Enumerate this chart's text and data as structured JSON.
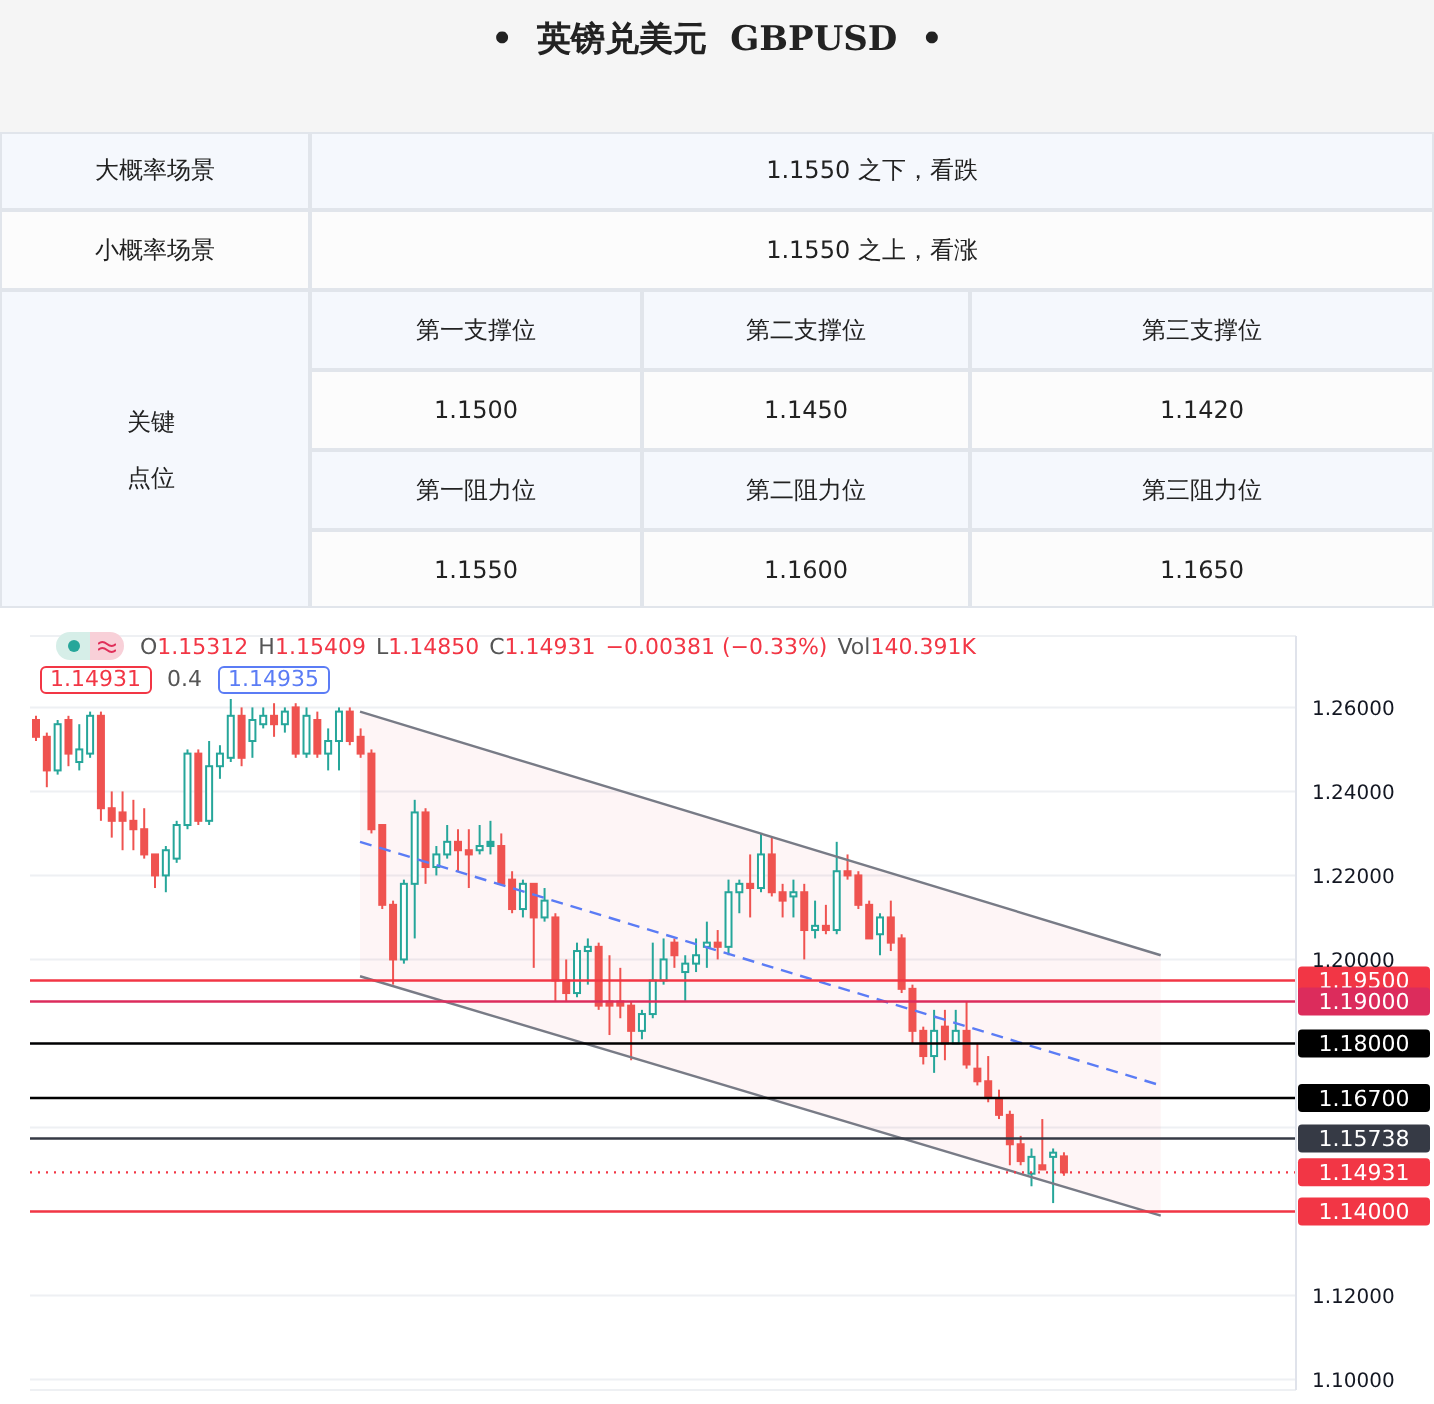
{
  "chart_data": [
    {
      "type": "other",
      "title": "•  英镑兑美元  GBPUSD  •",
      "annotations": [
        "大概率场景",
        "1.1550 之下，看跌",
        "小概率场景",
        "1.1550 之上，看涨",
        "关键点位",
        "第一支撑位",
        "第二支撑位",
        "第三支撑位",
        "1.1500",
        "1.1450",
        "1.1420",
        "第一阻力位",
        "第二阻力位",
        "第三阻力位",
        "1.1550",
        "1.1600",
        "1.1650"
      ]
    },
    {
      "type": "candlestick",
      "categories": [
        null,
        null,
        null,
        null,
        null,
        null,
        null,
        null,
        null,
        null,
        null,
        null,
        null,
        null,
        null,
        null,
        null,
        null,
        null,
        null,
        null,
        null,
        null,
        null,
        null,
        null,
        null,
        null,
        null,
        null,
        null,
        null,
        null,
        null,
        null,
        null,
        null,
        null,
        null,
        null,
        null,
        null,
        null,
        null,
        null,
        null,
        null,
        null,
        null,
        null,
        null,
        null,
        null,
        null,
        null,
        null,
        null,
        null,
        null,
        null,
        null,
        null,
        null,
        null,
        null,
        null,
        null,
        null,
        null,
        null,
        null,
        null,
        null,
        null,
        null,
        null,
        null,
        null,
        null,
        null,
        null,
        null,
        null,
        null,
        null,
        null,
        null,
        null,
        null,
        null,
        null,
        null,
        null,
        null,
        null,
        null,
        null,
        null,
        null,
        null,
        null,
        null,
        null,
        null,
        null,
        null,
        null,
        null,
        null,
        null,
        null,
        null,
        null,
        null,
        null,
        null,
        null
      ],
      "ohlc": [
        [
          1.257,
          1.258,
          1.252,
          1.253
        ],
        [
          1.253,
          1.254,
          1.241,
          1.245
        ],
        [
          1.245,
          1.257,
          1.244,
          1.256
        ],
        [
          1.257,
          1.258,
          1.246,
          1.249
        ],
        [
          1.247,
          1.256,
          1.245,
          1.25
        ],
        [
          1.249,
          1.259,
          1.248,
          1.258
        ],
        [
          1.258,
          1.259,
          1.233,
          1.236
        ],
        [
          1.236,
          1.24,
          1.229,
          1.233
        ],
        [
          1.235,
          1.24,
          1.226,
          1.233
        ],
        [
          1.233,
          1.238,
          1.226,
          1.231
        ],
        [
          1.231,
          1.236,
          1.224,
          1.225
        ],
        [
          1.225,
          1.225,
          1.217,
          1.22
        ],
        [
          1.22,
          1.227,
          1.216,
          1.226
        ],
        [
          1.224,
          1.233,
          1.223,
          1.232
        ],
        [
          1.232,
          1.25,
          1.231,
          1.249
        ],
        [
          1.249,
          1.25,
          1.232,
          1.233
        ],
        [
          1.233,
          1.252,
          1.232,
          1.246
        ],
        [
          1.246,
          1.251,
          1.243,
          1.249
        ],
        [
          1.248,
          1.262,
          1.247,
          1.258
        ],
        [
          1.258,
          1.26,
          1.246,
          1.248
        ],
        [
          1.252,
          1.26,
          1.248,
          1.257
        ],
        [
          1.256,
          1.26,
          1.255,
          1.258
        ],
        [
          1.258,
          1.261,
          1.253,
          1.256
        ],
        [
          1.256,
          1.26,
          1.254,
          1.259
        ],
        [
          1.26,
          1.261,
          1.248,
          1.249
        ],
        [
          1.249,
          1.26,
          1.248,
          1.258
        ],
        [
          1.257,
          1.259,
          1.248,
          1.249
        ],
        [
          1.249,
          1.255,
          1.245,
          1.252
        ],
        [
          1.252,
          1.26,
          1.245,
          1.259
        ],
        [
          1.259,
          1.26,
          1.251,
          1.252
        ],
        [
          1.253,
          1.255,
          1.248,
          1.249
        ],
        [
          1.249,
          1.25,
          1.23,
          1.231
        ],
        [
          1.232,
          1.232,
          1.212,
          1.213
        ],
        [
          1.213,
          1.214,
          1.194,
          1.2
        ],
        [
          1.2,
          1.219,
          1.199,
          1.218
        ],
        [
          1.218,
          1.238,
          1.205,
          1.235
        ],
        [
          1.235,
          1.236,
          1.218,
          1.222
        ],
        [
          1.222,
          1.227,
          1.22,
          1.225
        ],
        [
          1.225,
          1.232,
          1.224,
          1.228
        ],
        [
          1.228,
          1.231,
          1.221,
          1.226
        ],
        [
          1.226,
          1.231,
          1.217,
          1.225
        ],
        [
          1.226,
          1.232,
          1.225,
          1.227
        ],
        [
          1.228,
          1.233,
          1.225,
          1.227
        ],
        [
          1.227,
          1.23,
          1.218,
          1.218
        ],
        [
          1.219,
          1.221,
          1.211,
          1.212
        ],
        [
          1.212,
          1.219,
          1.21,
          1.218
        ],
        [
          1.218,
          1.218,
          1.198,
          1.21
        ],
        [
          1.21,
          1.217,
          1.209,
          1.214
        ],
        [
          1.21,
          1.211,
          1.19,
          1.195
        ],
        [
          1.195,
          1.2,
          1.19,
          1.192
        ],
        [
          1.192,
          1.204,
          1.191,
          1.202
        ],
        [
          1.202,
          1.205,
          1.194,
          1.203
        ],
        [
          1.203,
          1.204,
          1.188,
          1.189
        ],
        [
          1.19,
          1.201,
          1.182,
          1.189
        ],
        [
          1.19,
          1.198,
          1.186,
          1.189
        ],
        [
          1.189,
          1.19,
          1.176,
          1.183
        ],
        [
          1.183,
          1.188,
          1.181,
          1.187
        ],
        [
          1.187,
          1.204,
          1.186,
          1.195
        ],
        [
          1.195,
          1.205,
          1.194,
          1.2
        ],
        [
          1.204,
          1.205,
          1.198,
          1.201
        ],
        [
          1.197,
          1.201,
          1.19,
          1.199
        ],
        [
          1.199,
          1.205,
          1.197,
          1.201
        ],
        [
          1.203,
          1.209,
          1.198,
          1.204
        ],
        [
          1.204,
          1.207,
          1.2,
          1.203
        ],
        [
          1.203,
          1.219,
          1.201,
          1.216
        ],
        [
          1.216,
          1.219,
          1.211,
          1.218
        ],
        [
          1.218,
          1.225,
          1.21,
          1.217
        ],
        [
          1.217,
          1.23,
          1.216,
          1.225
        ],
        [
          1.225,
          1.229,
          1.215,
          1.216
        ],
        [
          1.216,
          1.218,
          1.21,
          1.214
        ],
        [
          1.215,
          1.219,
          1.21,
          1.216
        ],
        [
          1.216,
          1.218,
          1.2,
          1.207
        ],
        [
          1.207,
          1.214,
          1.205,
          1.208
        ],
        [
          1.208,
          1.213,
          1.206,
          1.207
        ],
        [
          1.207,
          1.228,
          1.206,
          1.221
        ],
        [
          1.221,
          1.225,
          1.219,
          1.22
        ],
        [
          1.22,
          1.221,
          1.212,
          1.213
        ],
        [
          1.213,
          1.214,
          1.205,
          1.205
        ],
        [
          1.206,
          1.211,
          1.201,
          1.21
        ],
        [
          1.21,
          1.214,
          1.202,
          1.204
        ],
        [
          1.205,
          1.206,
          1.192,
          1.193
        ],
        [
          1.193,
          1.194,
          1.18,
          1.183
        ],
        [
          1.183,
          1.184,
          1.175,
          1.177
        ],
        [
          1.177,
          1.188,
          1.173,
          1.183
        ],
        [
          1.184,
          1.188,
          1.176,
          1.18
        ],
        [
          1.18,
          1.188,
          1.18,
          1.183
        ],
        [
          1.183,
          1.19,
          1.174,
          1.175
        ],
        [
          1.174,
          1.18,
          1.17,
          1.171
        ],
        [
          1.171,
          1.177,
          1.166,
          1.167
        ],
        [
          1.167,
          1.169,
          1.162,
          1.163
        ],
        [
          1.163,
          1.164,
          1.151,
          1.156
        ],
        [
          1.156,
          1.158,
          1.151,
          1.152
        ],
        [
          1.149,
          1.155,
          1.146,
          1.153
        ],
        [
          1.151,
          1.162,
          1.15,
          1.15
        ],
        [
          1.153,
          1.155,
          1.142,
          1.154
        ],
        [
          1.15312,
          1.15409,
          1.1485,
          1.14931
        ],
        null,
        null,
        null,
        null,
        null,
        null,
        null,
        null,
        null,
        null,
        null,
        null,
        null,
        null,
        null,
        null,
        null,
        null,
        null,
        null,
        null
      ],
      "colors": [
        "#ef5350",
        "#ef5350",
        "#26a69a",
        "#ef5350",
        "#26a69a",
        "#26a69a",
        "#ef5350",
        "#ef5350",
        "#ef5350",
        "#ef5350",
        "#ef5350",
        "#ef5350",
        "#26a69a",
        "#26a69a",
        "#26a69a",
        "#ef5350",
        "#26a69a",
        "#26a69a",
        "#26a69a",
        "#ef5350",
        "#26a69a",
        "#26a69a",
        "#ef5350",
        "#26a69a",
        "#ef5350",
        "#26a69a",
        "#ef5350",
        "#26a69a",
        "#26a69a",
        "#ef5350",
        "#ef5350",
        "#ef5350",
        "#ef5350",
        "#ef5350",
        "#26a69a",
        "#26a69a",
        "#ef5350",
        "#26a69a",
        "#26a69a",
        "#ef5350",
        "#ef5350",
        "#26a69a",
        "#26a69a",
        "#ef5350",
        "#ef5350",
        "#26a69a",
        "#ef5350",
        "#26a69a",
        "#ef5350",
        "#ef5350",
        "#26a69a",
        "#26a69a",
        "#ef5350",
        "#ef5350",
        "#ef5350",
        "#ef5350",
        "#26a69a",
        "#26a69a",
        "#26a69a",
        "#ef5350",
        "#26a69a",
        "#26a69a",
        "#26a69a",
        "#ef5350",
        "#26a69a",
        "#26a69a",
        "#ef5350",
        "#26a69a",
        "#ef5350",
        "#ef5350",
        "#26a69a",
        "#ef5350",
        "#26a69a",
        "#ef5350",
        "#26a69a",
        "#ef5350",
        "#ef5350",
        "#ef5350",
        "#26a69a",
        "#ef5350",
        "#ef5350",
        "#ef5350",
        "#ef5350",
        "#26a69a",
        "#ef5350",
        "#26a69a",
        "#ef5350",
        "#ef5350",
        "#ef5350",
        "#ef5350",
        "#ef5350",
        "#ef5350",
        "#26a69a",
        "#ef5350",
        "#26a69a",
        "#ef5350",
        null,
        null,
        null,
        null,
        null,
        null,
        null,
        null,
        null,
        null,
        null,
        null,
        null,
        null,
        null,
        null,
        null,
        null,
        null,
        null,
        null
      ],
      "series": [
        {
          "type": "line",
          "color": "#787b86",
          "values": [
            null,
            null,
            null,
            null,
            null,
            null,
            null,
            null,
            null,
            null,
            null,
            null,
            null,
            null,
            null,
            null,
            null,
            null,
            null,
            null,
            null,
            null,
            null,
            null,
            null,
            null,
            null,
            null,
            null,
            null,
            1.259,
            null,
            null,
            null,
            null,
            null,
            null,
            null,
            null,
            null,
            null,
            null,
            null,
            null,
            null,
            null,
            null,
            null,
            null,
            null,
            null,
            null,
            null,
            null,
            null,
            null,
            null,
            null,
            null,
            null,
            null,
            null,
            null,
            null,
            null,
            null,
            null,
            null,
            null,
            null,
            null,
            null,
            null,
            null,
            null,
            null,
            null,
            null,
            null,
            null,
            null,
            null,
            null,
            null,
            null,
            null,
            null,
            null,
            null,
            null,
            null,
            null,
            null,
            null,
            null,
            null,
            null,
            null,
            null,
            null,
            null,
            null,
            null,
            null,
            1.201,
            null,
            null,
            null,
            null,
            null,
            null,
            null,
            null,
            null,
            null,
            null,
            null
          ]
        },
        {
          "type": "line",
          "color": "#787b86",
          "values": [
            null,
            null,
            null,
            null,
            null,
            null,
            null,
            null,
            null,
            null,
            null,
            null,
            null,
            null,
            null,
            null,
            null,
            null,
            null,
            null,
            null,
            null,
            null,
            null,
            null,
            null,
            null,
            null,
            null,
            null,
            1.196,
            null,
            null,
            null,
            null,
            null,
            null,
            null,
            null,
            null,
            null,
            null,
            null,
            null,
            null,
            null,
            null,
            null,
            null,
            null,
            null,
            null,
            null,
            null,
            null,
            null,
            null,
            null,
            null,
            null,
            null,
            null,
            null,
            null,
            null,
            null,
            null,
            null,
            null,
            null,
            null,
            null,
            null,
            null,
            null,
            null,
            null,
            null,
            null,
            null,
            null,
            null,
            null,
            null,
            null,
            null,
            null,
            null,
            null,
            null,
            null,
            null,
            null,
            null,
            null,
            null,
            null,
            null,
            null,
            null,
            null,
            null,
            null,
            null,
            1.139,
            null,
            null,
            null,
            null,
            null,
            null,
            null,
            null,
            null,
            null,
            null,
            null
          ]
        },
        {
          "type": "line",
          "color": "#5b7cf5",
          "line_style": "dashed",
          "values": [
            null,
            null,
            null,
            null,
            null,
            null,
            null,
            null,
            null,
            null,
            null,
            null,
            null,
            null,
            null,
            null,
            null,
            null,
            null,
            null,
            null,
            null,
            null,
            null,
            null,
            null,
            null,
            null,
            null,
            null,
            1.228,
            null,
            null,
            null,
            null,
            null,
            null,
            null,
            null,
            null,
            null,
            null,
            null,
            null,
            null,
            null,
            null,
            null,
            null,
            null,
            null,
            null,
            null,
            null,
            null,
            null,
            null,
            null,
            null,
            null,
            null,
            null,
            null,
            null,
            null,
            null,
            null,
            null,
            null,
            null,
            null,
            null,
            null,
            null,
            null,
            null,
            null,
            null,
            null,
            null,
            null,
            null,
            null,
            null,
            null,
            null,
            null,
            null,
            null,
            null,
            null,
            null,
            null,
            null,
            null,
            null,
            null,
            null,
            null,
            null,
            null,
            null,
            null,
            null,
            1.17,
            null,
            null,
            null,
            null,
            null,
            null,
            null,
            null,
            null,
            null,
            null,
            null
          ],
          "lower": [
            null,
            null,
            null,
            null,
            null,
            null,
            null,
            null,
            null,
            null,
            null,
            null,
            null,
            null,
            null,
            null,
            null,
            null,
            null,
            null,
            null,
            null,
            null,
            null,
            null,
            null,
            null,
            null,
            null,
            null,
            1.196,
            null,
            null,
            null,
            null,
            null,
            null,
            null,
            null,
            null,
            null,
            null,
            null,
            null,
            null,
            null,
            null,
            null,
            null,
            null,
            null,
            null,
            null,
            null,
            null,
            null,
            null,
            null,
            null,
            null,
            null,
            null,
            null,
            null,
            null,
            null,
            null,
            null,
            null,
            null,
            null,
            null,
            null,
            null,
            null,
            null,
            null,
            null,
            null,
            null,
            null,
            null,
            null,
            null,
            null,
            null,
            null,
            null,
            null,
            null,
            null,
            null,
            null,
            null,
            null,
            null,
            null,
            null,
            null,
            null,
            null,
            null,
            null,
            null,
            1.139,
            null,
            null,
            null,
            null,
            null,
            null,
            null,
            null,
            null,
            null,
            null,
            null
          ],
          "upper": [
            null,
            null,
            null,
            null,
            null,
            null,
            null,
            null,
            null,
            null,
            null,
            null,
            null,
            null,
            null,
            null,
            null,
            null,
            null,
            null,
            null,
            null,
            null,
            null,
            null,
            null,
            null,
            null,
            null,
            null,
            1.259,
            null,
            null,
            null,
            null,
            null,
            null,
            null,
            null,
            null,
            null,
            null,
            null,
            null,
            null,
            null,
            null,
            null,
            null,
            null,
            null,
            null,
            null,
            null,
            null,
            null,
            null,
            null,
            null,
            null,
            null,
            null,
            null,
            null,
            null,
            null,
            null,
            null,
            null,
            null,
            null,
            null,
            null,
            null,
            null,
            null,
            null,
            null,
            null,
            null,
            null,
            null,
            null,
            null,
            null,
            null,
            null,
            null,
            null,
            null,
            null,
            null,
            null,
            null,
            null,
            null,
            null,
            null,
            null,
            null,
            null,
            null,
            null,
            null,
            1.201,
            null,
            null,
            null,
            null,
            null,
            null,
            null,
            null,
            null,
            null,
            null,
            null
          ]
        }
      ],
      "ylim": [
        1.0975,
        1.277
      ],
      "yticks": [
        {
          "value": 1.26,
          "label": "1.26000"
        },
        {
          "value": 1.24,
          "label": "1.24000"
        },
        {
          "value": 1.22,
          "label": "1.22000"
        },
        {
          "value": 1.2,
          "label": "1.20000"
        },
        {
          "value": 1.18,
          "label": null
        },
        {
          "value": 1.16,
          "label": null
        },
        {
          "value": 1.14,
          "label": null
        },
        {
          "value": 1.12,
          "label": "1.12000"
        },
        {
          "value": 1.1,
          "label": "1.10000"
        }
      ],
      "grid": "y",
      "tick_labels": "y",
      "ref_lines": [
        {
          "axis": "y",
          "value": 1.195,
          "label": "1.19500",
          "color": "#f23645"
        },
        {
          "axis": "y",
          "value": 1.19,
          "label": "1.19000",
          "color": "#dc2c5c"
        },
        {
          "axis": "y",
          "value": 1.18,
          "label": "1.18000",
          "color": "#000000"
        },
        {
          "axis": "y",
          "value": 1.167,
          "label": "1.16700",
          "color": "#000000"
        },
        {
          "axis": "y",
          "value": 1.15738,
          "label": "1.15738",
          "color": "#363a45"
        },
        {
          "axis": "y",
          "value": 1.14931,
          "label": "1.14931",
          "color": "#f23645",
          "line_style": "dotted"
        },
        {
          "axis": "y",
          "value": 1.14,
          "label": "1.14000",
          "color": "#f23645"
        }
      ],
      "annotations": [
        "O",
        "1.15312",
        "H",
        "1.15409",
        "L",
        "1.14850",
        "C",
        "1.14931",
        "−0.00381 (−0.33%)",
        "Vol",
        "140.391K",
        "1.14931",
        "0.4",
        "1.14935"
      ]
    }
  ]
}
